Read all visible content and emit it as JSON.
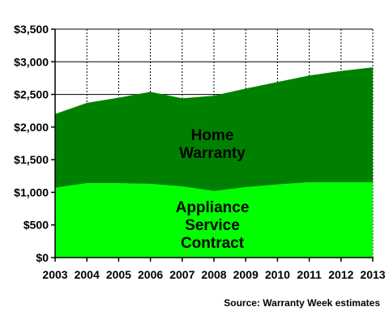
{
  "chart_data": {
    "type": "area",
    "stacked": true,
    "x": [
      "2003",
      "2004",
      "2005",
      "2006",
      "2007",
      "2008",
      "2009",
      "2010",
      "2011",
      "2012",
      "2013"
    ],
    "series": [
      {
        "name": "Appliance Service Contract",
        "values": [
          1070,
          1140,
          1140,
          1130,
          1090,
          1020,
          1080,
          1120,
          1155,
          1155,
          1155
        ],
        "color": "#00ff00"
      },
      {
        "name": "Home Warranty",
        "values": [
          1130,
          1230,
          1310,
          1410,
          1350,
          1460,
          1510,
          1570,
          1635,
          1705,
          1760
        ],
        "color": "#008000"
      }
    ],
    "area_labels": [
      [
        "Appliance",
        "Service",
        "Contract"
      ],
      [
        "Home",
        "Warranty"
      ]
    ],
    "ylim": [
      0,
      3500
    ],
    "yticks": [
      "$0",
      "$500",
      "$1,000",
      "$1,500",
      "$2,000",
      "$2,500",
      "$3,000",
      "$3,500"
    ],
    "ytick_values": [
      0,
      500,
      1000,
      1500,
      2000,
      2500,
      3000,
      3500
    ],
    "grid": true,
    "annotation": "Source: Warranty Week estimates"
  }
}
